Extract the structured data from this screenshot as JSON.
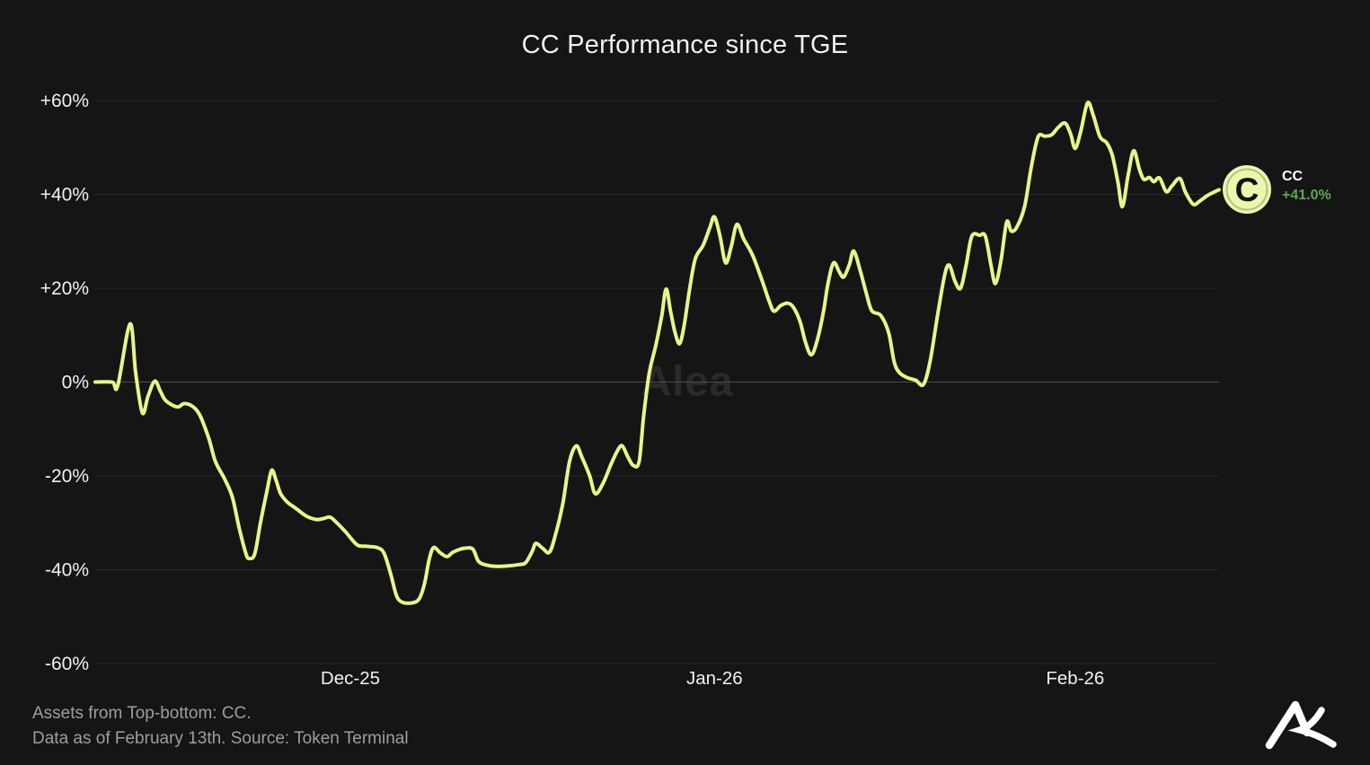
{
  "title": "CC Performance since TGE",
  "watermark": "Alea",
  "legend": {
    "symbol": "C",
    "name": "CC",
    "change": "+41.0%"
  },
  "footer": {
    "line1": "Assets from Top-bottom: CC.",
    "line2": "Data as of February 13th. Source: Token Terminal"
  },
  "colors": {
    "background": "#151515",
    "line": "#e8f48b",
    "grid": "#282828",
    "zero_grid": "#4f4f4f",
    "axis_text": "#f0f0f0",
    "footer_text": "#9e9e9e",
    "change_green": "#5aa850",
    "watermark_text": "#2a2a2a",
    "icon_fill": "#edf6ad",
    "icon_glyph": "#141414",
    "logo": "#ffffff"
  },
  "chart_data": {
    "type": "line",
    "title": "CC Performance since TGE",
    "series_name": "CC",
    "current_value_pct": 41.0,
    "unit": "%",
    "grid": "horizontal-only",
    "legend_position": "right-of-line-end",
    "ylim": [
      -65,
      65
    ],
    "y_ticks": [
      60,
      40,
      20,
      0,
      -20,
      -40,
      -60
    ],
    "x_ticks": [
      {
        "label": "Dec-25",
        "t": 0.227
      },
      {
        "label": "Jan-26",
        "t": 0.551
      },
      {
        "label": "Feb-26",
        "t": 0.872
      }
    ],
    "points": [
      [
        0.0,
        0
      ],
      [
        0.015,
        0
      ],
      [
        0.02,
        -0.8
      ],
      [
        0.031,
        12.4
      ],
      [
        0.036,
        2
      ],
      [
        0.042,
        -6.6
      ],
      [
        0.047,
        -3
      ],
      [
        0.053,
        0.2
      ],
      [
        0.058,
        -2
      ],
      [
        0.063,
        -4
      ],
      [
        0.073,
        -5.3
      ],
      [
        0.079,
        -4.6
      ],
      [
        0.086,
        -5.1
      ],
      [
        0.093,
        -7
      ],
      [
        0.101,
        -12
      ],
      [
        0.107,
        -17
      ],
      [
        0.115,
        -20.6
      ],
      [
        0.122,
        -24.5
      ],
      [
        0.128,
        -31
      ],
      [
        0.134,
        -36.5
      ],
      [
        0.137,
        -37.6
      ],
      [
        0.142,
        -36.6
      ],
      [
        0.147,
        -30
      ],
      [
        0.153,
        -23
      ],
      [
        0.157,
        -18.8
      ],
      [
        0.161,
        -21
      ],
      [
        0.165,
        -23.8
      ],
      [
        0.171,
        -25.6
      ],
      [
        0.179,
        -27
      ],
      [
        0.188,
        -28.6
      ],
      [
        0.197,
        -29.3
      ],
      [
        0.203,
        -29.1
      ],
      [
        0.209,
        -28.8
      ],
      [
        0.215,
        -30
      ],
      [
        0.223,
        -32
      ],
      [
        0.233,
        -34.7
      ],
      [
        0.241,
        -35
      ],
      [
        0.251,
        -35.3
      ],
      [
        0.257,
        -36.5
      ],
      [
        0.263,
        -41
      ],
      [
        0.268,
        -45.5
      ],
      [
        0.273,
        -46.9
      ],
      [
        0.281,
        -47.1
      ],
      [
        0.288,
        -46.3
      ],
      [
        0.293,
        -43
      ],
      [
        0.297,
        -38
      ],
      [
        0.301,
        -35.3
      ],
      [
        0.307,
        -36.4
      ],
      [
        0.313,
        -37.2
      ],
      [
        0.318,
        -36.3
      ],
      [
        0.324,
        -35.7
      ],
      [
        0.329,
        -35.4
      ],
      [
        0.336,
        -35.6
      ],
      [
        0.341,
        -38.2
      ],
      [
        0.348,
        -39
      ],
      [
        0.357,
        -39.3
      ],
      [
        0.367,
        -39.2
      ],
      [
        0.377,
        -38.9
      ],
      [
        0.383,
        -38.5
      ],
      [
        0.389,
        -36
      ],
      [
        0.392,
        -34.4
      ],
      [
        0.398,
        -35.4
      ],
      [
        0.404,
        -36.3
      ],
      [
        0.409,
        -33
      ],
      [
        0.416,
        -26
      ],
      [
        0.422,
        -17
      ],
      [
        0.428,
        -13.6
      ],
      [
        0.433,
        -16
      ],
      [
        0.44,
        -20
      ],
      [
        0.445,
        -23.8
      ],
      [
        0.452,
        -21.5
      ],
      [
        0.459,
        -17.5
      ],
      [
        0.465,
        -14.5
      ],
      [
        0.469,
        -13.6
      ],
      [
        0.474,
        -16
      ],
      [
        0.479,
        -17.8
      ],
      [
        0.484,
        -16.9
      ],
      [
        0.488,
        -7.2
      ],
      [
        0.493,
        1.9
      ],
      [
        0.499,
        8
      ],
      [
        0.504,
        14
      ],
      [
        0.508,
        19.8
      ],
      [
        0.512,
        15
      ],
      [
        0.516,
        10.5
      ],
      [
        0.52,
        8.2
      ],
      [
        0.524,
        12
      ],
      [
        0.529,
        20
      ],
      [
        0.534,
        26.3
      ],
      [
        0.541,
        29.2
      ],
      [
        0.547,
        33
      ],
      [
        0.551,
        35.2
      ],
      [
        0.556,
        31
      ],
      [
        0.561,
        25.4
      ],
      [
        0.566,
        29
      ],
      [
        0.571,
        33.6
      ],
      [
        0.577,
        30.5
      ],
      [
        0.585,
        27
      ],
      [
        0.593,
        21.9
      ],
      [
        0.6,
        17
      ],
      [
        0.604,
        15.1
      ],
      [
        0.61,
        16.3
      ],
      [
        0.616,
        16.8
      ],
      [
        0.621,
        16
      ],
      [
        0.627,
        13
      ],
      [
        0.632,
        8.5
      ],
      [
        0.637,
        5.8
      ],
      [
        0.642,
        8.5
      ],
      [
        0.648,
        15
      ],
      [
        0.652,
        21
      ],
      [
        0.657,
        25.4
      ],
      [
        0.662,
        23.5
      ],
      [
        0.666,
        22.4
      ],
      [
        0.671,
        25
      ],
      [
        0.675,
        27.9
      ],
      [
        0.681,
        23.5
      ],
      [
        0.686,
        19
      ],
      [
        0.691,
        15.2
      ],
      [
        0.699,
        14.2
      ],
      [
        0.706,
        10.5
      ],
      [
        0.711,
        4.2
      ],
      [
        0.716,
        1.9
      ],
      [
        0.723,
        0.9
      ],
      [
        0.73,
        0.4
      ],
      [
        0.737,
        -0.5
      ],
      [
        0.743,
        4.6
      ],
      [
        0.75,
        15
      ],
      [
        0.756,
        23
      ],
      [
        0.76,
        24.9
      ],
      [
        0.765,
        21.5
      ],
      [
        0.77,
        20
      ],
      [
        0.775,
        25
      ],
      [
        0.78,
        31.1
      ],
      [
        0.787,
        31.3
      ],
      [
        0.792,
        31.1
      ],
      [
        0.797,
        25
      ],
      [
        0.801,
        21
      ],
      [
        0.806,
        26
      ],
      [
        0.811,
        34.1
      ],
      [
        0.815,
        32.2
      ],
      [
        0.82,
        33
      ],
      [
        0.827,
        37.5
      ],
      [
        0.833,
        46
      ],
      [
        0.839,
        52.3
      ],
      [
        0.845,
        52.4
      ],
      [
        0.851,
        52.7
      ],
      [
        0.857,
        54.3
      ],
      [
        0.863,
        55.2
      ],
      [
        0.868,
        52.8
      ],
      [
        0.872,
        49.8
      ],
      [
        0.877,
        53.5
      ],
      [
        0.883,
        59.5
      ],
      [
        0.888,
        56.9
      ],
      [
        0.894,
        52.3
      ],
      [
        0.9,
        51
      ],
      [
        0.905,
        48.3
      ],
      [
        0.91,
        42.6
      ],
      [
        0.914,
        37.4
      ],
      [
        0.919,
        44
      ],
      [
        0.924,
        49.3
      ],
      [
        0.929,
        45.4
      ],
      [
        0.933,
        43.2
      ],
      [
        0.938,
        43.6
      ],
      [
        0.942,
        42.7
      ],
      [
        0.947,
        43.5
      ],
      [
        0.953,
        40.6
      ],
      [
        0.958,
        41.8
      ],
      [
        0.965,
        43.4
      ],
      [
        0.97,
        40.5
      ],
      [
        0.977,
        37.9
      ],
      [
        0.983,
        38.6
      ],
      [
        0.99,
        39.8
      ],
      [
        1.0,
        41.0
      ]
    ]
  }
}
